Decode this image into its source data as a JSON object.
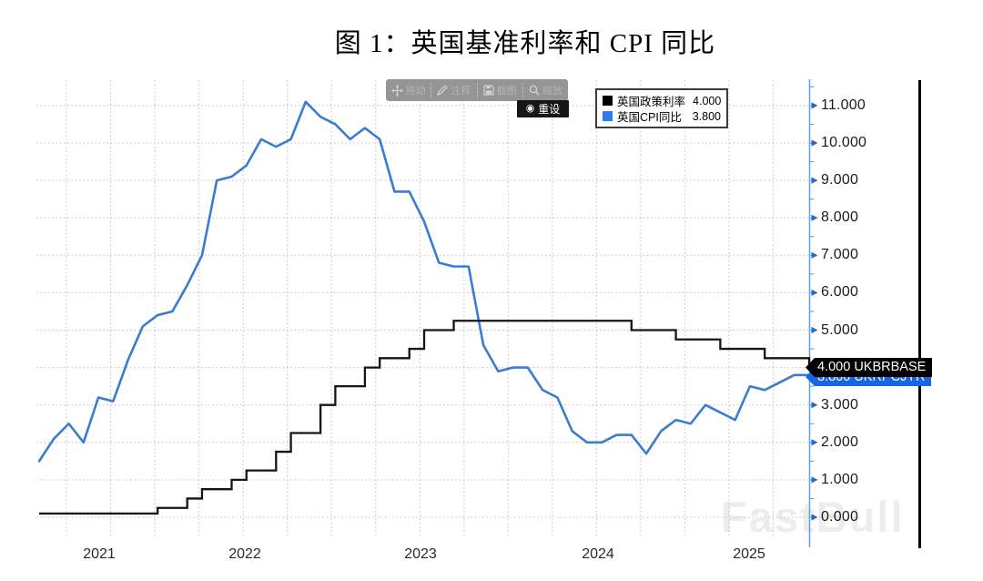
{
  "title": "图 1：英国基准利率和 CPI 同比",
  "toolbar": {
    "items": [
      {
        "icon": "move-icon",
        "label": "拖动"
      },
      {
        "icon": "pencil-icon",
        "label": "注释"
      },
      {
        "icon": "save-icon",
        "label": "截图"
      },
      {
        "icon": "magnifier-icon",
        "label": "缩放"
      }
    ],
    "reset_label": "重设",
    "reset_icon": "◉"
  },
  "legend": {
    "items": [
      {
        "label": "英国政策利率",
        "value": "4.000",
        "color": "#000000"
      },
      {
        "label": "英国CPI同比",
        "value": "3.800",
        "color": "#2b7bf3"
      }
    ]
  },
  "price_tags": [
    {
      "id": "policy",
      "text": "4.000 UKBRBASE",
      "bg": "#000000"
    },
    {
      "id": "cpi",
      "text": "3.800 UKRPCJYR",
      "bg": "#1766e8"
    }
  ],
  "watermark": "FastBull",
  "axes": {
    "y_ticks": [
      "0.000",
      "1.000",
      "2.000",
      "3.000",
      "4.000",
      "5.000",
      "6.000",
      "7.000",
      "8.000",
      "9.000",
      "10.000",
      "11.000"
    ],
    "x_ticks": [
      "2021",
      "2022",
      "2023",
      "2024",
      "2025"
    ]
  },
  "chart_data": {
    "type": "line",
    "title": "英国基准利率和 CPI 同比",
    "xlabel": "",
    "ylabel": "",
    "ylim": [
      0,
      11.5
    ],
    "grid": true,
    "legend_position": "top-right",
    "x_months": [
      "2021-04",
      "2021-05",
      "2021-06",
      "2021-07",
      "2021-08",
      "2021-09",
      "2021-10",
      "2021-11",
      "2021-12",
      "2022-01",
      "2022-02",
      "2022-03",
      "2022-04",
      "2022-05",
      "2022-06",
      "2022-07",
      "2022-08",
      "2022-09",
      "2022-10",
      "2022-11",
      "2022-12",
      "2023-01",
      "2023-02",
      "2023-03",
      "2023-04",
      "2023-05",
      "2023-06",
      "2023-07",
      "2023-08",
      "2023-09",
      "2023-10",
      "2023-11",
      "2023-12",
      "2024-01",
      "2024-02",
      "2024-03",
      "2024-04",
      "2024-05",
      "2024-06",
      "2024-07",
      "2024-08",
      "2024-09",
      "2024-10",
      "2024-11",
      "2024-12",
      "2025-01",
      "2025-02",
      "2025-03",
      "2025-04",
      "2025-05",
      "2025-06",
      "2025-07",
      "2025-08"
    ],
    "series": [
      {
        "name": "英国政策利率",
        "ticker": "UKBRBASE",
        "style": "step",
        "color": "#141414",
        "latest": 4.0,
        "values": [
          0.1,
          0.1,
          0.1,
          0.1,
          0.1,
          0.1,
          0.1,
          0.1,
          0.25,
          0.25,
          0.5,
          0.75,
          0.75,
          1.0,
          1.25,
          1.25,
          1.75,
          2.25,
          2.25,
          3.0,
          3.5,
          3.5,
          4.0,
          4.25,
          4.25,
          4.5,
          5.0,
          5.0,
          5.25,
          5.25,
          5.25,
          5.25,
          5.25,
          5.25,
          5.25,
          5.25,
          5.25,
          5.25,
          5.25,
          5.25,
          5.0,
          5.0,
          5.0,
          4.75,
          4.75,
          4.75,
          4.5,
          4.5,
          4.5,
          4.25,
          4.25,
          4.25,
          4.0
        ]
      },
      {
        "name": "英国CPI同比",
        "ticker": "UKRPCJYR",
        "style": "line",
        "color": "#3a7cd0",
        "latest": 3.8,
        "values": [
          1.5,
          2.1,
          2.5,
          2.0,
          3.2,
          3.1,
          4.2,
          5.1,
          5.4,
          5.5,
          6.2,
          7.0,
          9.0,
          9.1,
          9.4,
          10.1,
          9.9,
          10.1,
          11.1,
          10.7,
          10.5,
          10.1,
          10.4,
          10.1,
          8.7,
          8.7,
          7.9,
          6.8,
          6.7,
          6.7,
          4.6,
          3.9,
          4.0,
          4.0,
          3.4,
          3.2,
          2.3,
          2.0,
          2.0,
          2.2,
          2.2,
          1.7,
          2.3,
          2.6,
          2.5,
          3.0,
          2.8,
          2.6,
          3.5,
          3.4,
          3.6,
          3.8,
          3.8
        ]
      }
    ]
  }
}
